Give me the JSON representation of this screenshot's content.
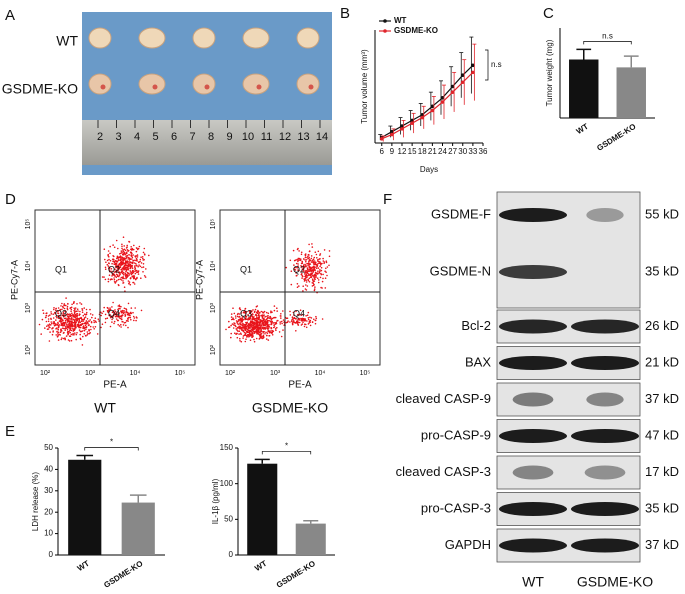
{
  "panels": [
    "A",
    "B",
    "C",
    "D",
    "E",
    "F"
  ],
  "photo": {
    "rows": [
      "WT",
      "GSDME-KO"
    ],
    "ruler": [
      "2",
      "3",
      "4",
      "5",
      "6",
      "7",
      "8",
      "9",
      "10",
      "11",
      "12",
      "13",
      "14"
    ]
  },
  "chart_data": [
    {
      "type": "line",
      "ylabel": "Tumor volume (mm³)",
      "xlabel": "Days",
      "annotation": "n.s",
      "x": [
        6,
        9,
        12,
        15,
        18,
        21,
        24,
        27,
        30,
        33
      ],
      "xlim": [
        4,
        36
      ],
      "xticks": [
        6,
        9,
        12,
        15,
        18,
        21,
        24,
        27,
        30,
        33,
        36
      ],
      "ylim": [
        0,
        800
      ],
      "series": [
        {
          "name": "WT",
          "color": "#111111",
          "values": [
            40,
            80,
            120,
            160,
            200,
            260,
            320,
            400,
            480,
            550
          ],
          "errors": [
            20,
            40,
            60,
            70,
            80,
            100,
            120,
            140,
            160,
            200
          ]
        },
        {
          "name": "GSDME-KO",
          "color": "#e0242b",
          "values": [
            30,
            60,
            100,
            140,
            180,
            230,
            290,
            360,
            430,
            500
          ],
          "errors": [
            20,
            40,
            60,
            70,
            80,
            100,
            120,
            140,
            160,
            200
          ]
        }
      ]
    },
    {
      "type": "bar",
      "ylabel": "Tumor weight (mg)",
      "annotation": "n.s",
      "categories": [
        "WT",
        "GSDME-KO"
      ],
      "values": [
        520,
        450
      ],
      "errors": [
        90,
        100
      ],
      "colors": [
        "#111111",
        "#888888"
      ],
      "ylim": [
        0,
        800
      ]
    },
    {
      "type": "bar",
      "ylabel": "LDH release (%)",
      "annotation": "*",
      "categories": [
        "WT",
        "GSDME-KO"
      ],
      "values": [
        44.5,
        24.5
      ],
      "errors": [
        2,
        3.5
      ],
      "colors": [
        "#111111",
        "#888888"
      ],
      "ylim": [
        0,
        50
      ],
      "yticks": [
        0,
        10,
        20,
        30,
        40,
        50
      ]
    },
    {
      "type": "bar",
      "ylabel": "IL-1β (pg/ml)",
      "annotation": "*",
      "categories": [
        "WT",
        "GSDME-KO"
      ],
      "values": [
        128,
        44
      ],
      "errors": [
        6,
        4
      ],
      "colors": [
        "#111111",
        "#888888"
      ],
      "ylim": [
        0,
        150
      ],
      "yticks": [
        0,
        50,
        100,
        150
      ]
    }
  ],
  "flow": {
    "plots": [
      "WT",
      "GSDME-KO"
    ],
    "xlabel": "PE-A",
    "ylabel": "PE-Cy7-A",
    "quadrants": [
      "Q1",
      "Q2",
      "Q3",
      "Q4"
    ],
    "ticks": [
      "10²",
      "10³",
      "10⁴",
      "10⁵"
    ]
  },
  "blot": {
    "rows": [
      {
        "name": "GSDME-F",
        "size": "55 kD"
      },
      {
        "name": "GSDME-N",
        "size": "35 kD"
      },
      {
        "name": "Bcl-2",
        "size": "26 kD"
      },
      {
        "name": "BAX",
        "size": "21 kD"
      },
      {
        "name": "cleaved CASP-9",
        "size": "37 kD"
      },
      {
        "name": "pro-CASP-9",
        "size": "47 kD"
      },
      {
        "name": "cleaved CASP-3",
        "size": "17 kD"
      },
      {
        "name": "pro-CASP-3",
        "size": "35 kD"
      },
      {
        "name": "GAPDH",
        "size": "37 kD"
      }
    ],
    "lanes": [
      "WT",
      "GSDME-KO"
    ]
  }
}
